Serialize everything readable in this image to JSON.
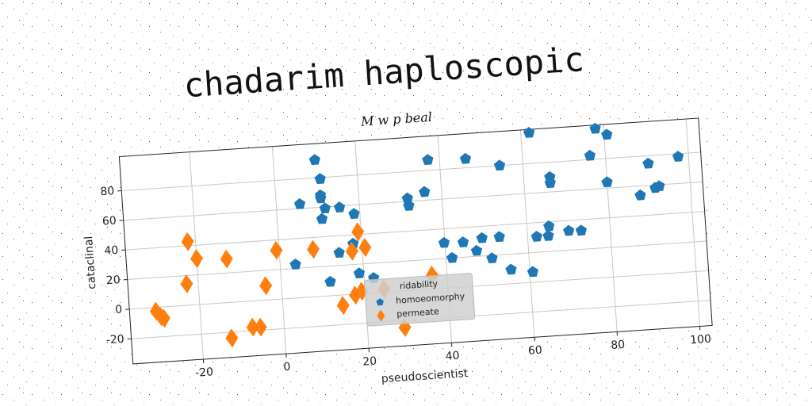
{
  "chart_data": {
    "type": "scatter",
    "title": "chadarim haploscopic",
    "subtitle": "M w p beal",
    "x_label": "pseudoscientist",
    "y_label": "cataclinal",
    "xlim": [
      -37,
      103
    ],
    "xticks": [
      -20,
      0,
      20,
      40,
      60,
      80,
      100
    ],
    "ylim": [
      -37,
      103
    ],
    "yticks": [
      -20,
      0,
      20,
      40,
      60,
      80
    ],
    "grid": true,
    "legend_title": "ridability",
    "legend": "lower center",
    "series": [
      {
        "name": "homoeomorphy",
        "color": "#1f77b4",
        "marker": "pentagon",
        "x": [
          10,
          11,
          10.8,
          10.8,
          5.7,
          11.7,
          15.2,
          18.6,
          10.8,
          17.9,
          14.4,
          3.7,
          11.8,
          18.9,
          22.3,
          31.7,
          31.9,
          35.9,
          37.2,
          46.3,
          54.4,
          62,
          39.8,
          44.4,
          41.5,
          49,
          47.5,
          53.2,
          51.1,
          55.5,
          60.7,
          62.2,
          65,
          65.3,
          66.3,
          66.3,
          70,
          73,
          76.3,
          78,
          80.7,
          80,
          87.8,
          90.2,
          91.5,
          92.5,
          97.5
        ],
        "values": [
          92,
          79,
          68,
          66,
          63,
          59,
          59,
          54,
          52,
          34,
          28.5,
          22.6,
          9.4,
          13.8,
          10,
          62,
          57,
          65.6,
          87,
          86,
          80,
          100.7,
          30.5,
          30,
          20,
          32,
          23.7,
          32,
          18,
          9.5,
          7,
          30.5,
          30.5,
          37,
          70,
          66,
          33,
          32.6,
          82.6,
          100.5,
          96,
          64,
          53.7,
          74.7,
          58,
          59,
          78
        ]
      },
      {
        "name": "permeate",
        "color": "#ff7f0e",
        "marker": "diamond",
        "x": [
          -30.6,
          -29.5,
          -28.8,
          -21.9,
          -20,
          -22.8,
          -12.8,
          -12.8,
          -7.6,
          -5.7,
          -3.8,
          -0.7,
          8.2,
          14.5,
          17.5,
          19.2,
          17.6,
          19.2,
          20.7,
          24.6,
          29,
          36.4
        ],
        "values": [
          -2.6,
          -6.5,
          -7.7,
          42.8,
          31,
          14.4,
          29.4,
          -24,
          -17.6,
          -18,
          9.7,
          33,
          32,
          -7,
          29,
          41.8,
          -0.7,
          1.6,
          31,
          2.2,
          -24.6,
          9.4
        ]
      }
    ]
  }
}
